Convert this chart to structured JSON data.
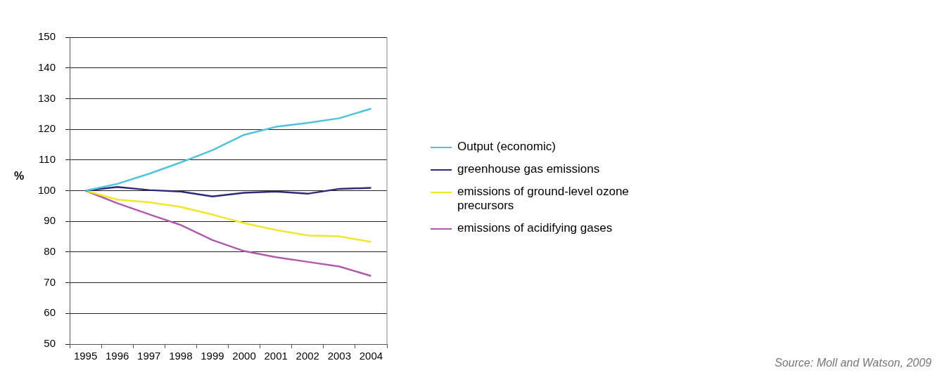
{
  "chart_data": {
    "type": "line",
    "ylabel": "%",
    "categories": [
      "1995",
      "1996",
      "1997",
      "1998",
      "1999",
      "2000",
      "2001",
      "2002",
      "2003",
      "2004"
    ],
    "series": [
      {
        "name": "Output (economic)",
        "color": "#4fc3d9",
        "values": [
          100,
          102.2,
          105.5,
          109.2,
          113.2,
          118.2,
          120.8,
          122.1,
          123.6,
          126.7
        ]
      },
      {
        "name": "greenhouse gas emissions",
        "color": "#2e2a78",
        "values": [
          100,
          101.2,
          100.2,
          99.7,
          98.1,
          99.3,
          99.7,
          99.0,
          100.6,
          100.9
        ]
      },
      {
        "name": "emissions of ground-level ozone precursors",
        "color": "#f0e62a",
        "values": [
          100,
          97.1,
          96.2,
          94.7,
          92.2,
          89.4,
          87.2,
          85.4,
          85.1,
          83.3
        ]
      },
      {
        "name": "emissions of acidifying gases",
        "color": "#b05aae",
        "values": [
          100,
          95.9,
          92.3,
          88.8,
          83.9,
          80.3,
          78.3,
          76.8,
          75.3,
          72.2
        ]
      }
    ],
    "ylim": [
      50,
      150
    ],
    "yticks": [
      50,
      60,
      70,
      80,
      90,
      100,
      110,
      120,
      130,
      140,
      150
    ],
    "grid": "y",
    "legend": "right",
    "marker": "none",
    "line_style": "solid",
    "annotations": [
      "Source: Moll and Watson, 2009"
    ]
  }
}
